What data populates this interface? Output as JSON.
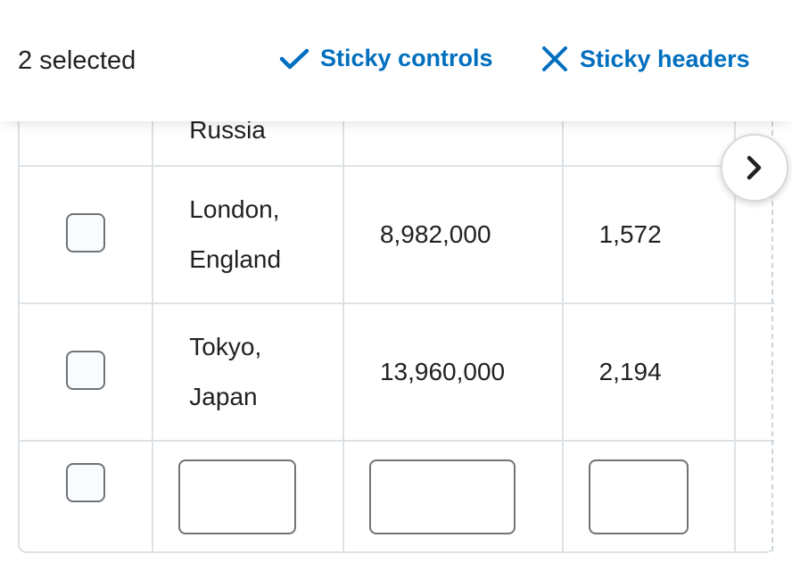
{
  "toolbar": {
    "selected_text": "2 selected",
    "sticky_controls": {
      "label": "Sticky controls",
      "state": "checked",
      "icon": "checkmark-icon"
    },
    "sticky_headers": {
      "label": "Sticky headers",
      "state": "unchecked",
      "icon": "close-icon"
    }
  },
  "table": {
    "rows": [
      {
        "city_line1": "Russia",
        "city_line2": "",
        "population": "",
        "area": ""
      },
      {
        "city_line1": "London,",
        "city_line2": "England",
        "population": "8,982,000",
        "area": "1,572"
      },
      {
        "city_line1": "Tokyo,",
        "city_line2": "Japan",
        "population": "13,960,000",
        "area": "2,194"
      }
    ]
  },
  "colors": {
    "accent": "#006fbf",
    "text": "#202122",
    "border": "#dde2e6",
    "input_border": "#6e7477"
  },
  "scroll_button": {
    "icon": "chevron-right-icon"
  }
}
